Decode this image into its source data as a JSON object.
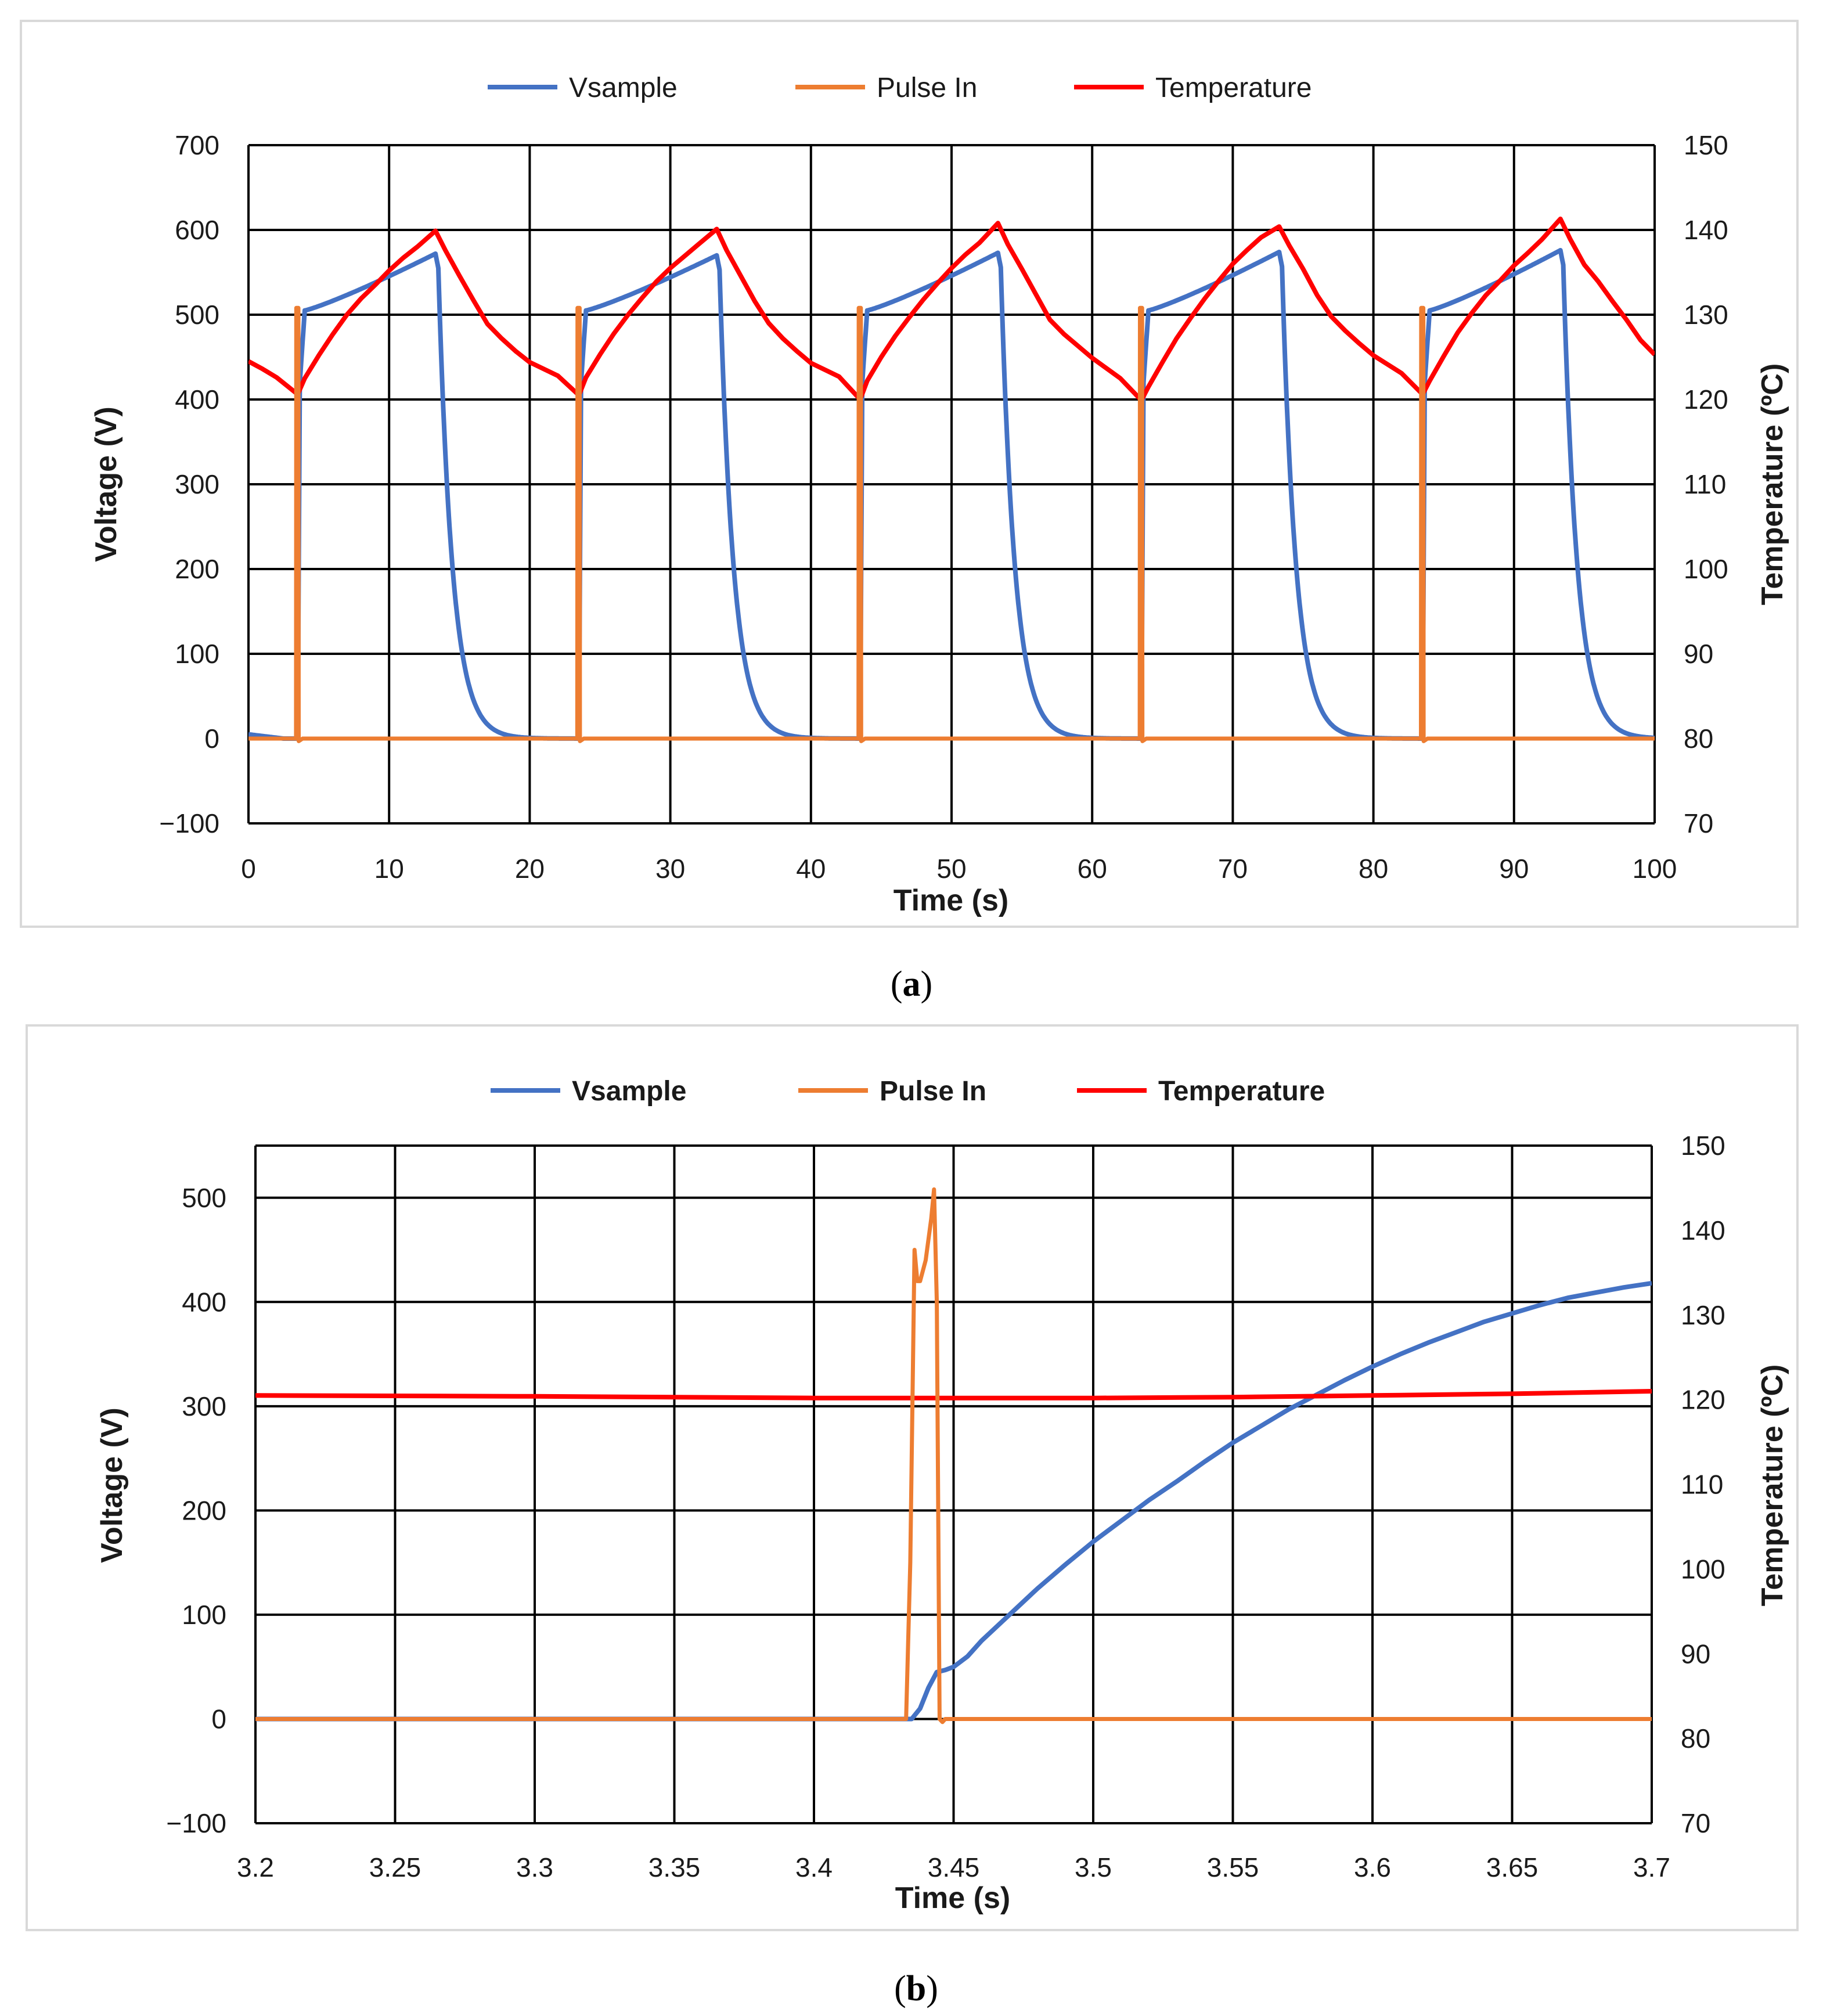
{
  "figure": {
    "panels": [
      {
        "caption_letter": "a",
        "legend": [
          {
            "name": "Vsample",
            "color": "#4472C4"
          },
          {
            "name": "Pulse In",
            "color": "#ED7D31"
          },
          {
            "name": "Temperature",
            "color": "#FF0000"
          }
        ]
      },
      {
        "caption_letter": "b",
        "legend": [
          {
            "name": "Vsample",
            "color": "#4472C4"
          },
          {
            "name": "Pulse In",
            "color": "#ED7D31"
          },
          {
            "name": "Temperature",
            "color": "#FF0000"
          }
        ]
      }
    ]
  },
  "chart_data": [
    {
      "type": "line",
      "xlabel": "Time (s)",
      "ylabel": "Voltage (V)",
      "y2label": "Temperature (ºC)",
      "xlim": [
        0,
        100
      ],
      "ylim": [
        -100,
        700
      ],
      "y2lim": [
        70,
        150
      ],
      "x_ticks": [
        "0",
        "10",
        "20",
        "30",
        "40",
        "50",
        "60",
        "70",
        "80",
        "90",
        "100"
      ],
      "y_ticks": [
        "700",
        "600",
        "500",
        "400",
        "300",
        "200",
        "100",
        "0",
        "−100"
      ],
      "y2_ticks": [
        "150",
        "140",
        "130",
        "120",
        "110",
        "100",
        "90",
        "80",
        "70"
      ],
      "grid": true,
      "legend_position": "top",
      "series": [
        {
          "name": "Vsample",
          "axis": "left",
          "color": "#4472C4",
          "model": {
            "period": 20,
            "first_pulse": 3.5,
            "plateau": 505,
            "peak": [
              572,
              570,
              573,
              574,
              576
            ],
            "end_time": 13.3,
            "decay_tau": 1.0
          }
        },
        {
          "name": "Pulse In",
          "axis": "left",
          "color": "#ED7D31",
          "model": {
            "period": 20,
            "first_pulse": 3.4,
            "spike": 508,
            "width": 0.15
          }
        },
        {
          "name": "Temperature",
          "axis": "right",
          "color": "#FF0000",
          "points": [
            [
              0,
              124.5
            ],
            [
              1,
              123.6
            ],
            [
              2,
              122.6
            ],
            [
              3.5,
              120.6
            ],
            [
              4,
              122.5
            ],
            [
              5,
              125.2
            ],
            [
              6,
              127.7
            ],
            [
              7,
              130.0
            ],
            [
              8,
              131.9
            ],
            [
              9,
              133.5
            ],
            [
              10,
              135.2
            ],
            [
              11,
              136.7
            ],
            [
              12,
              138.0
            ],
            [
              13.3,
              139.9
            ],
            [
              14,
              137.6
            ],
            [
              15,
              134.6
            ],
            [
              16,
              131.7
            ],
            [
              17,
              128.9
            ],
            [
              18,
              127.2
            ],
            [
              19,
              125.7
            ],
            [
              20,
              124.4
            ],
            [
              22,
              122.8
            ],
            [
              23.5,
              120.5
            ],
            [
              24,
              122.6
            ],
            [
              25,
              125.3
            ],
            [
              26,
              127.8
            ],
            [
              27,
              130.0
            ],
            [
              28,
              132.0
            ],
            [
              29,
              133.9
            ],
            [
              30,
              135.5
            ],
            [
              31,
              136.9
            ],
            [
              32,
              138.3
            ],
            [
              33.3,
              140.1
            ],
            [
              34,
              137.6
            ],
            [
              35,
              134.6
            ],
            [
              36,
              131.6
            ],
            [
              37,
              129.0
            ],
            [
              38,
              127.2
            ],
            [
              39,
              125.7
            ],
            [
              40,
              124.3
            ],
            [
              42,
              122.7
            ],
            [
              43.5,
              120.0
            ],
            [
              44,
              122.2
            ],
            [
              45,
              125.0
            ],
            [
              46,
              127.5
            ],
            [
              47,
              129.7
            ],
            [
              48,
              131.8
            ],
            [
              49,
              133.7
            ],
            [
              50,
              135.5
            ],
            [
              51,
              137.1
            ],
            [
              52,
              138.5
            ],
            [
              53.3,
              140.8
            ],
            [
              54,
              138.3
            ],
            [
              55,
              135.4
            ],
            [
              56,
              132.4
            ],
            [
              57,
              129.4
            ],
            [
              58,
              127.7
            ],
            [
              59,
              126.3
            ],
            [
              60,
              124.9
            ],
            [
              62,
              122.5
            ],
            [
              63.5,
              119.9
            ],
            [
              64,
              121.5
            ],
            [
              65,
              124.4
            ],
            [
              66,
              127.2
            ],
            [
              67,
              129.6
            ],
            [
              68,
              131.9
            ],
            [
              69,
              134.0
            ],
            [
              70,
              136.0
            ],
            [
              71,
              137.6
            ],
            [
              72,
              139.1
            ],
            [
              73.3,
              140.4
            ],
            [
              74,
              138.2
            ],
            [
              75,
              135.4
            ],
            [
              76,
              132.3
            ],
            [
              77,
              129.8
            ],
            [
              78,
              128.1
            ],
            [
              79,
              126.6
            ],
            [
              80,
              125.2
            ],
            [
              82,
              123.1
            ],
            [
              83.5,
              120.6
            ],
            [
              84,
              122.2
            ],
            [
              85,
              125.1
            ],
            [
              86,
              127.9
            ],
            [
              87,
              130.2
            ],
            [
              88,
              132.3
            ],
            [
              89,
              134.0
            ],
            [
              90,
              135.8
            ],
            [
              91,
              137.3
            ],
            [
              92,
              138.9
            ],
            [
              93.3,
              141.3
            ],
            [
              94,
              138.9
            ],
            [
              95,
              135.9
            ],
            [
              96,
              133.9
            ],
            [
              97,
              131.6
            ],
            [
              98,
              129.4
            ],
            [
              99,
              127.0
            ],
            [
              100,
              125.3
            ]
          ]
        }
      ]
    },
    {
      "type": "line",
      "xlabel": "Time (s)",
      "ylabel": "Voltage (V)",
      "y2label": "Temperature (ºC)",
      "xlim": [
        3.2,
        3.7
      ],
      "ylim": [
        -100,
        550
      ],
      "y2lim": [
        70,
        150
      ],
      "x_ticks": [
        "3.2",
        "3.25",
        "3.3",
        "3.35",
        "3.4",
        "3.45",
        "3.5",
        "3.55",
        "3.6",
        "3.65",
        "3.7"
      ],
      "y_ticks": [
        "500",
        "400",
        "300",
        "200",
        "100",
        "0",
        "−100"
      ],
      "y2_ticks": [
        "150",
        "140",
        "130",
        "120",
        "110",
        "100",
        "90",
        "80",
        "70"
      ],
      "grid": true,
      "legend_position": "top",
      "series": [
        {
          "name": "Vsample",
          "axis": "left",
          "color": "#4472C4",
          "points": [
            [
              3.2,
              0
            ],
            [
              3.435,
              0
            ],
            [
              3.438,
              10
            ],
            [
              3.441,
              30
            ],
            [
              3.444,
              45
            ],
            [
              3.447,
              47
            ],
            [
              3.45,
              50
            ],
            [
              3.455,
              60
            ],
            [
              3.46,
              75
            ],
            [
              3.47,
              100
            ],
            [
              3.48,
              125
            ],
            [
              3.49,
              148
            ],
            [
              3.5,
              170
            ],
            [
              3.51,
              190
            ],
            [
              3.52,
              210
            ],
            [
              3.53,
              228
            ],
            [
              3.54,
              247
            ],
            [
              3.55,
              265
            ],
            [
              3.56,
              281
            ],
            [
              3.57,
              297
            ],
            [
              3.58,
              311
            ],
            [
              3.59,
              325
            ],
            [
              3.6,
              338
            ],
            [
              3.61,
              350
            ],
            [
              3.62,
              361
            ],
            [
              3.63,
              371
            ],
            [
              3.64,
              381
            ],
            [
              3.65,
              389
            ],
            [
              3.66,
              397
            ],
            [
              3.67,
              404
            ],
            [
              3.68,
              409
            ],
            [
              3.69,
              414
            ],
            [
              3.7,
              418
            ]
          ]
        },
        {
          "name": "Pulse In",
          "axis": "left",
          "color": "#ED7D31",
          "points": [
            [
              3.2,
              0
            ],
            [
              3.433,
              0
            ],
            [
              3.4345,
              150
            ],
            [
              3.436,
              450
            ],
            [
              3.437,
              420
            ],
            [
              3.438,
              420
            ],
            [
              3.44,
              440
            ],
            [
              3.442,
              480
            ],
            [
              3.443,
              508
            ],
            [
              3.444,
              400
            ],
            [
              3.445,
              0
            ],
            [
              3.446,
              -3
            ],
            [
              3.447,
              0
            ],
            [
              3.45,
              0
            ],
            [
              3.7,
              0
            ]
          ]
        },
        {
          "name": "Temperature",
          "axis": "right",
          "color": "#FF0000",
          "points": [
            [
              3.2,
              120.5
            ],
            [
              3.3,
              120.4
            ],
            [
              3.4,
              120.2
            ],
            [
              3.5,
              120.2
            ],
            [
              3.55,
              120.3
            ],
            [
              3.6,
              120.5
            ],
            [
              3.65,
              120.7
            ],
            [
              3.7,
              121.0
            ]
          ]
        }
      ]
    }
  ]
}
